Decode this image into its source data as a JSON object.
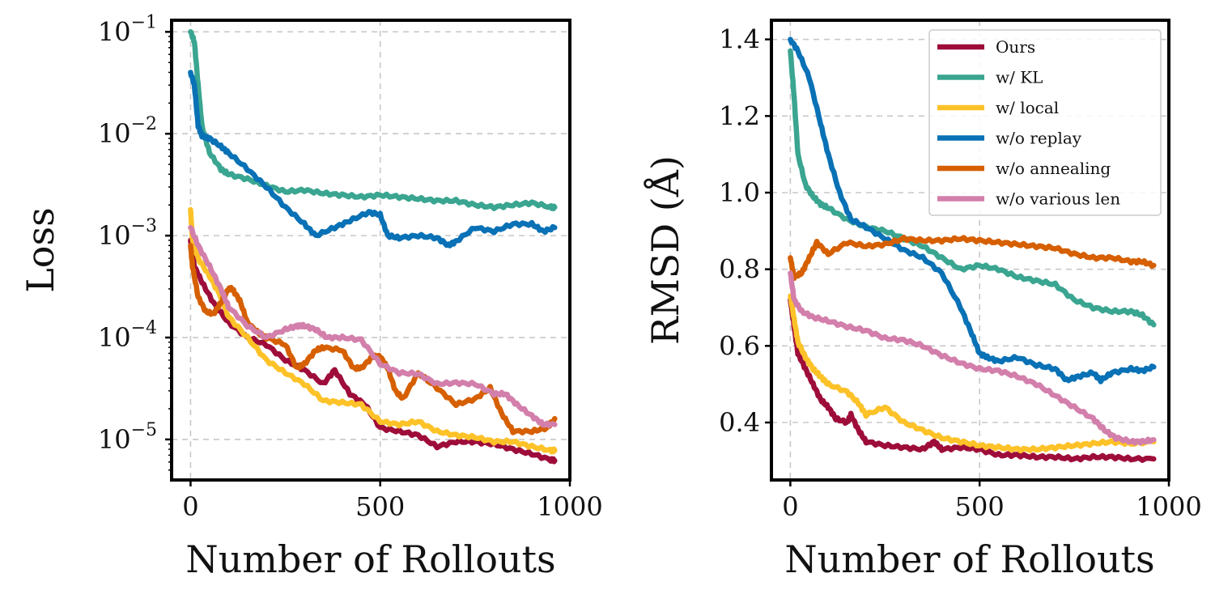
{
  "chart_data": [
    {
      "type": "line",
      "xlabel": "Number of Rollouts",
      "ylabel": "Loss",
      "yscale": "log",
      "xlim": [
        -50,
        1000
      ],
      "ylim": [
        4e-06,
        0.13
      ],
      "xticks": [
        0,
        500,
        1000
      ],
      "xtick_labels": [
        "0",
        "500",
        "1000"
      ],
      "ytick_labels": [
        {
          "base": "10",
          "exp": "−1",
          "value": 0.1
        },
        {
          "base": "10",
          "exp": "−2",
          "value": 0.01
        },
        {
          "base": "10",
          "exp": "−3",
          "value": 0.001
        },
        {
          "base": "10",
          "exp": "−4",
          "value": 0.0001
        },
        {
          "base": "10",
          "exp": "−5",
          "value": 1e-05
        }
      ],
      "grid": true,
      "series": [
        {
          "name": "Ours",
          "color": "#9e0d3a",
          "x": [
            0,
            10,
            30,
            60,
            100,
            150,
            200,
            250,
            300,
            350,
            380,
            420,
            460,
            500,
            550,
            600,
            650,
            700,
            750,
            800,
            850,
            900,
            950,
            960
          ],
          "y": [
            0.0009,
            0.0005,
            0.00035,
            0.00022,
            0.00014,
            0.0001,
            8.5e-05,
            6e-05,
            4.8e-05,
            3.5e-05,
            4.8e-05,
            2.8e-05,
            2.2e-05,
            1.3e-05,
            1.2e-05,
            1.1e-05,
            8.5e-06,
            9.5e-06,
            9.5e-06,
            9e-06,
            8e-06,
            7.2e-06,
            6.3e-06,
            6.2e-06
          ]
        },
        {
          "name": "w/ KL",
          "color": "#3aa590",
          "x": [
            0,
            10,
            20,
            30,
            50,
            80,
            100,
            150,
            200,
            250,
            300,
            350,
            400,
            450,
            500,
            550,
            600,
            650,
            700,
            750,
            800,
            850,
            900,
            950,
            960
          ],
          "y": [
            0.1,
            0.08,
            0.03,
            0.012,
            0.0065,
            0.0045,
            0.004,
            0.0036,
            0.0031,
            0.0027,
            0.0028,
            0.0026,
            0.0025,
            0.0024,
            0.0025,
            0.0024,
            0.0023,
            0.0022,
            0.0022,
            0.002,
            0.0019,
            0.002,
            0.0021,
            0.0019,
            0.0019
          ]
        },
        {
          "name": "w/ local",
          "color": "#fdc228",
          "x": [
            0,
            5,
            20,
            50,
            80,
            100,
            150,
            200,
            250,
            300,
            350,
            400,
            450,
            500,
            550,
            600,
            650,
            700,
            750,
            800,
            850,
            900,
            950,
            960
          ],
          "y": [
            0.0018,
            0.0009,
            0.0006,
            0.0004,
            0.00025,
            0.00016,
            0.0001,
            6e-05,
            4.5e-05,
            3.5e-05,
            2.4e-05,
            2.3e-05,
            2.2e-05,
            1.5e-05,
            1.4e-05,
            1.5e-05,
            1.2e-05,
            1.1e-05,
            1.05e-05,
            9.5e-06,
            9.5e-06,
            8.5e-06,
            7.8e-06,
            7.8e-06
          ]
        },
        {
          "name": "w/o replay",
          "color": "#0971b5",
          "x": [
            0,
            10,
            20,
            30,
            50,
            80,
            100,
            150,
            200,
            250,
            300,
            330,
            380,
            420,
            470,
            500,
            520,
            550,
            600,
            650,
            680,
            700,
            750,
            800,
            850,
            900,
            930,
            960
          ],
          "y": [
            0.04,
            0.03,
            0.012,
            0.0095,
            0.009,
            0.0075,
            0.0065,
            0.0045,
            0.003,
            0.0019,
            0.0013,
            0.001,
            0.0012,
            0.0014,
            0.0017,
            0.0016,
            0.001,
            0.00095,
            0.001,
            0.00095,
            0.0008,
            0.00088,
            0.0012,
            0.0011,
            0.0013,
            0.0013,
            0.0011,
            0.0012
          ]
        },
        {
          "name": "w/o annealing",
          "color": "#d65f00",
          "x": [
            0,
            5,
            20,
            40,
            60,
            80,
            100,
            110,
            130,
            150,
            180,
            200,
            250,
            280,
            300,
            330,
            350,
            400,
            430,
            450,
            480,
            500,
            520,
            540,
            560,
            600,
            650,
            700,
            750,
            790,
            820,
            850,
            900,
            940,
            960
          ],
          "y": [
            0.0008,
            0.0005,
            0.00025,
            0.00018,
            0.00017,
            0.00022,
            0.0003,
            0.0003,
            0.00023,
            0.00014,
            0.00011,
            0.0001,
            8.5e-05,
            5e-05,
            5.5e-05,
            7.5e-05,
            8e-05,
            7.5e-05,
            5e-05,
            5e-05,
            6.5e-05,
            6.5e-05,
            5e-05,
            3e-05,
            2.5e-05,
            4.5e-05,
            3.2e-05,
            2.2e-05,
            2.5e-05,
            3.2e-05,
            1.8e-05,
            1.2e-05,
            1.2e-05,
            1.3e-05,
            1.6e-05
          ]
        },
        {
          "name": "w/o various len",
          "color": "#d37fab",
          "x": [
            0,
            20,
            50,
            80,
            100,
            150,
            200,
            250,
            280,
            300,
            330,
            360,
            400,
            450,
            500,
            550,
            600,
            650,
            700,
            750,
            800,
            830,
            860,
            900,
            930,
            960
          ],
          "y": [
            0.0012,
            0.0008,
            0.0005,
            0.0003,
            0.0002,
            0.00013,
            0.0001,
            0.00012,
            0.00013,
            0.00013,
            0.00012,
            0.0001,
            0.0001,
            9.5e-05,
            5.5e-05,
            4.5e-05,
            4.4e-05,
            3.5e-05,
            3.6e-05,
            3.5e-05,
            2.8e-05,
            2.8e-05,
            2.2e-05,
            1.7e-05,
            1.4e-05,
            1.4e-05
          ]
        }
      ]
    },
    {
      "type": "line",
      "xlabel": "Number of Rollouts",
      "ylabel": "RMSD (Å)",
      "yscale": "linear",
      "xlim": [
        -50,
        1000
      ],
      "ylim": [
        0.25,
        1.45
      ],
      "xticks": [
        0,
        500,
        1000
      ],
      "xtick_labels": [
        "0",
        "500",
        "1000"
      ],
      "yticks": [
        0.4,
        0.6,
        0.8,
        1.0,
        1.2,
        1.4
      ],
      "ytick_labels": [
        "0.4",
        "0.6",
        "0.8",
        "1.0",
        "1.2",
        "1.4"
      ],
      "grid": true,
      "legend_loc": "upper right",
      "series": [
        {
          "name": "Ours",
          "color": "#9e0d3a",
          "x": [
            0,
            10,
            20,
            40,
            60,
            80,
            100,
            120,
            150,
            160,
            180,
            200,
            250,
            300,
            350,
            380,
            400,
            450,
            500,
            550,
            600,
            650,
            700,
            750,
            800,
            850,
            900,
            960
          ],
          "y": [
            0.72,
            0.65,
            0.58,
            0.54,
            0.5,
            0.46,
            0.44,
            0.41,
            0.4,
            0.42,
            0.38,
            0.35,
            0.34,
            0.335,
            0.33,
            0.35,
            0.33,
            0.335,
            0.33,
            0.315,
            0.315,
            0.31,
            0.31,
            0.305,
            0.31,
            0.31,
            0.305,
            0.305
          ]
        },
        {
          "name": "w/ KL",
          "color": "#3aa590",
          "x": [
            0,
            10,
            20,
            40,
            60,
            80,
            100,
            150,
            200,
            250,
            300,
            350,
            400,
            450,
            500,
            550,
            600,
            650,
            700,
            750,
            800,
            850,
            900,
            930,
            960
          ],
          "y": [
            1.37,
            1.25,
            1.1,
            1.02,
            0.99,
            0.97,
            0.96,
            0.93,
            0.91,
            0.9,
            0.88,
            0.86,
            0.83,
            0.8,
            0.81,
            0.8,
            0.78,
            0.77,
            0.76,
            0.72,
            0.7,
            0.69,
            0.69,
            0.68,
            0.655
          ]
        },
        {
          "name": "w/ local",
          "color": "#fdc228",
          "x": [
            0,
            10,
            20,
            40,
            60,
            80,
            100,
            150,
            180,
            200,
            250,
            300,
            350,
            400,
            450,
            500,
            550,
            600,
            650,
            700,
            750,
            800,
            850,
            900,
            960
          ],
          "y": [
            0.73,
            0.67,
            0.61,
            0.57,
            0.54,
            0.52,
            0.5,
            0.48,
            0.45,
            0.42,
            0.44,
            0.4,
            0.38,
            0.36,
            0.35,
            0.34,
            0.335,
            0.33,
            0.33,
            0.335,
            0.34,
            0.345,
            0.35,
            0.345,
            0.35
          ]
        },
        {
          "name": "w/o replay",
          "color": "#0971b5",
          "x": [
            0,
            20,
            50,
            80,
            100,
            130,
            160,
            200,
            250,
            300,
            350,
            400,
            450,
            480,
            500,
            520,
            550,
            600,
            650,
            700,
            730,
            760,
            800,
            820,
            850,
            900,
            930,
            960
          ],
          "y": [
            1.4,
            1.37,
            1.3,
            1.18,
            1.1,
            1.0,
            0.93,
            0.91,
            0.88,
            0.85,
            0.83,
            0.79,
            0.7,
            0.63,
            0.58,
            0.57,
            0.56,
            0.57,
            0.55,
            0.54,
            0.51,
            0.52,
            0.53,
            0.51,
            0.53,
            0.54,
            0.535,
            0.545
          ]
        },
        {
          "name": "w/o annealing",
          "color": "#d65f00",
          "x": [
            0,
            10,
            30,
            50,
            70,
            100,
            150,
            200,
            250,
            300,
            350,
            400,
            450,
            500,
            550,
            600,
            650,
            700,
            750,
            800,
            850,
            900,
            930,
            960
          ],
          "y": [
            0.83,
            0.78,
            0.79,
            0.83,
            0.87,
            0.84,
            0.87,
            0.86,
            0.865,
            0.88,
            0.875,
            0.875,
            0.88,
            0.875,
            0.87,
            0.865,
            0.86,
            0.855,
            0.84,
            0.83,
            0.83,
            0.82,
            0.82,
            0.81
          ]
        },
        {
          "name": "w/o various len",
          "color": "#d37fab",
          "x": [
            0,
            10,
            30,
            60,
            100,
            150,
            200,
            250,
            300,
            350,
            400,
            450,
            500,
            550,
            600,
            650,
            700,
            750,
            800,
            830,
            860,
            900,
            930,
            960
          ],
          "y": [
            0.79,
            0.72,
            0.69,
            0.675,
            0.665,
            0.65,
            0.64,
            0.62,
            0.615,
            0.6,
            0.575,
            0.555,
            0.54,
            0.535,
            0.52,
            0.5,
            0.47,
            0.44,
            0.41,
            0.38,
            0.36,
            0.35,
            0.35,
            0.355
          ]
        }
      ]
    }
  ]
}
